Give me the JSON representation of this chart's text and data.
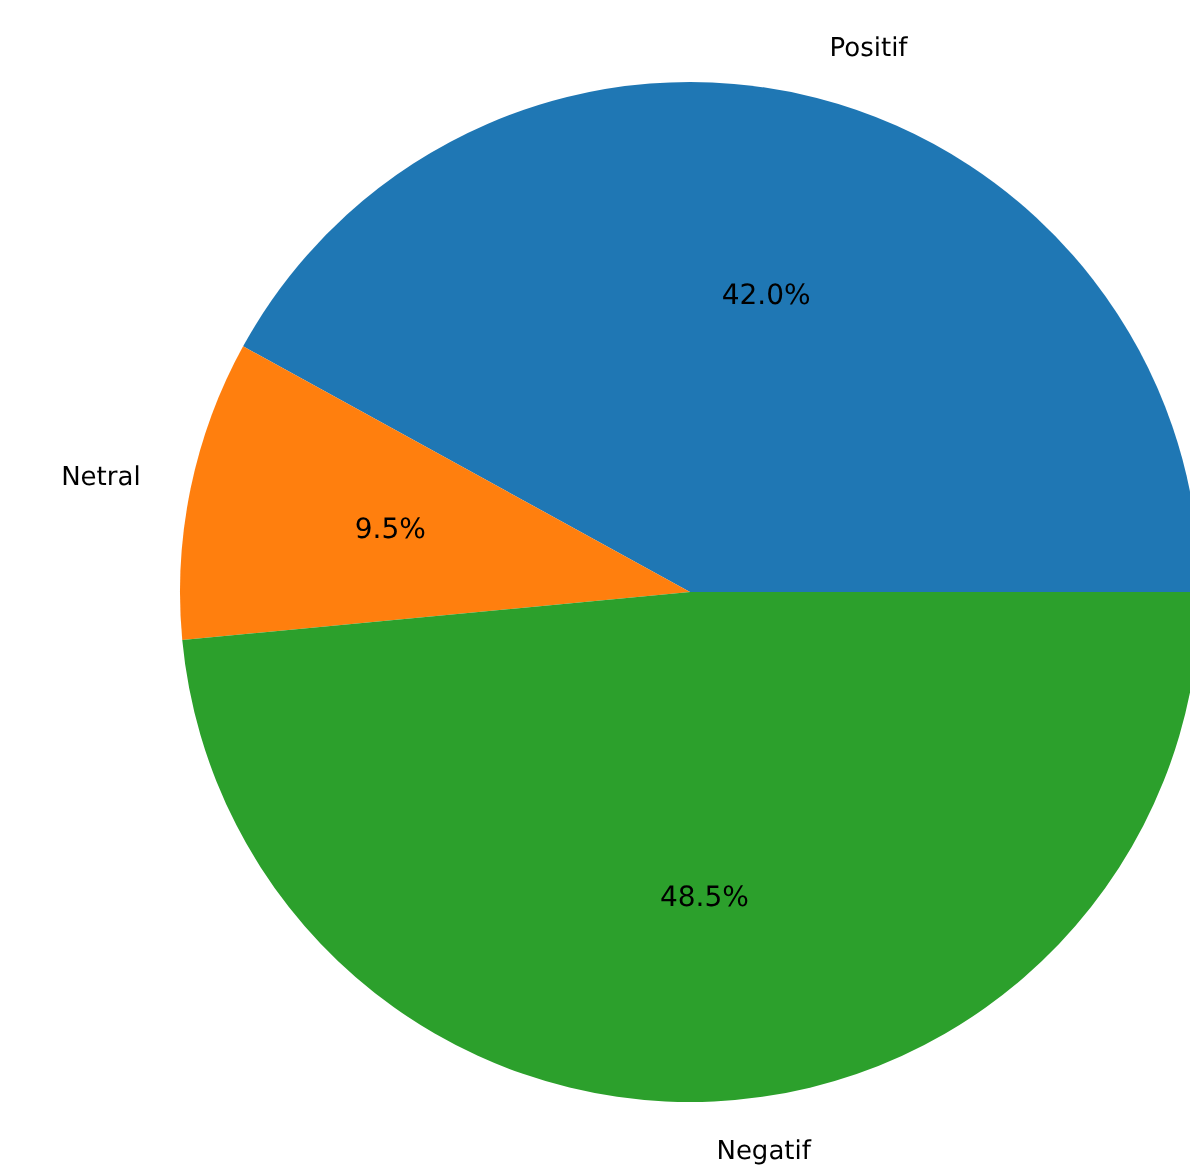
{
  "chart_data": {
    "type": "pie",
    "categories": [
      "Positif",
      "Netral",
      "Negatif"
    ],
    "values": [
      42.0,
      9.5,
      48.5
    ],
    "value_labels": [
      "42.0%",
      "9.5%",
      "48.5%"
    ],
    "colors": [
      "#1f77b4",
      "#ff7f0e",
      "#2ca02c"
    ],
    "legend": false
  }
}
